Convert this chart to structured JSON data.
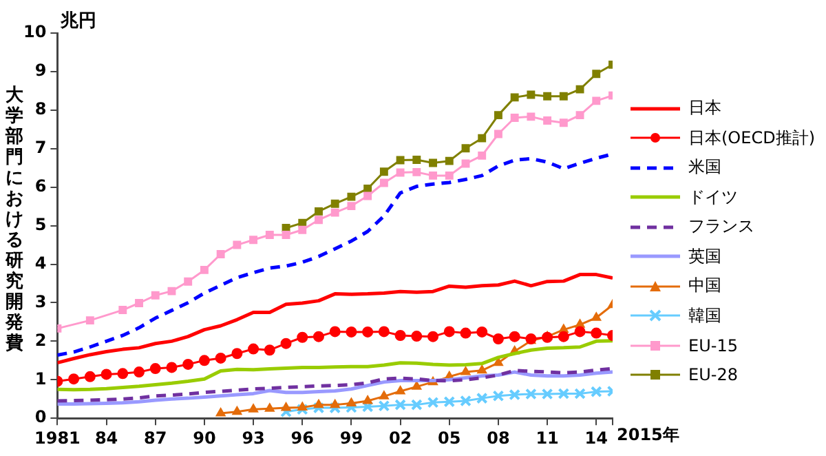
{
  "chart_data": {
    "type": "line",
    "ylabel": "大学部門における研究開発費",
    "annotations": [
      "兆円",
      "2015年"
    ],
    "x": [
      1981,
      1982,
      1983,
      1984,
      1985,
      1986,
      1987,
      1988,
      1989,
      1990,
      1991,
      1992,
      1993,
      1994,
      1995,
      1996,
      1997,
      1998,
      1999,
      2000,
      2001,
      2002,
      2003,
      2004,
      2005,
      2006,
      2007,
      2008,
      2009,
      2010,
      2011,
      2012,
      2013,
      2014,
      2015
    ],
    "xlim": [
      1981,
      2015
    ],
    "xticks": [
      {
        "value": 1981,
        "label": "1981"
      },
      {
        "value": 1984,
        "label": "84"
      },
      {
        "value": 1987,
        "label": "87"
      },
      {
        "value": 1990,
        "label": "90"
      },
      {
        "value": 1993,
        "label": "93"
      },
      {
        "value": 1996,
        "label": "96"
      },
      {
        "value": 1999,
        "label": "99"
      },
      {
        "value": 2002,
        "label": "02"
      },
      {
        "value": 2005,
        "label": "05"
      },
      {
        "value": 2008,
        "label": "08"
      },
      {
        "value": 2011,
        "label": "11"
      },
      {
        "value": 2014,
        "label": "14"
      },
      {
        "value": 2015,
        "label": null
      }
    ],
    "ylim": [
      0,
      10
    ],
    "yticks": [
      0,
      1,
      2,
      3,
      4,
      5,
      6,
      7,
      8,
      9,
      10
    ],
    "grid": false,
    "legend": "right",
    "series": [
      {
        "name": "日本",
        "color": "#ff0000",
        "marker": "none",
        "line_style": "solid",
        "values": [
          1.44,
          1.55,
          1.65,
          1.73,
          1.79,
          1.83,
          1.94,
          2.0,
          2.12,
          2.3,
          2.4,
          2.56,
          2.75,
          2.75,
          2.96,
          2.99,
          3.05,
          3.23,
          3.22,
          3.23,
          3.25,
          3.29,
          3.27,
          3.29,
          3.43,
          3.4,
          3.44,
          3.46,
          3.56,
          3.44,
          3.55,
          3.56,
          3.73,
          3.73,
          3.64
        ]
      },
      {
        "name": "日本(OECD推計)",
        "color": "#ff0000",
        "marker": "circle",
        "line_style": "solid",
        "values": [
          0.96,
          1.02,
          1.08,
          1.14,
          1.16,
          1.2,
          1.29,
          1.32,
          1.4,
          1.5,
          1.56,
          1.68,
          1.8,
          1.77,
          1.94,
          2.1,
          2.12,
          2.25,
          2.24,
          2.24,
          2.25,
          2.15,
          2.13,
          2.12,
          2.25,
          2.21,
          2.24,
          2.06,
          2.12,
          2.06,
          2.1,
          2.12,
          2.25,
          2.21,
          2.15
        ]
      },
      {
        "name": "米国",
        "color": "#0000ff",
        "marker": "none",
        "line_style": "dashed",
        "values": [
          1.64,
          1.72,
          1.85,
          2.0,
          2.15,
          2.35,
          2.6,
          2.8,
          3.0,
          3.25,
          3.45,
          3.65,
          3.78,
          3.9,
          3.95,
          4.05,
          4.2,
          4.4,
          4.6,
          4.85,
          5.25,
          5.85,
          6.02,
          6.08,
          6.12,
          6.2,
          6.3,
          6.55,
          6.7,
          6.74,
          6.65,
          6.48,
          6.62,
          6.75,
          6.86
        ]
      },
      {
        "name": "ドイツ",
        "color": "#99cc00",
        "marker": "none",
        "line_style": "solid",
        "values": [
          0.75,
          0.74,
          0.75,
          0.77,
          0.8,
          0.83,
          0.87,
          0.91,
          0.96,
          1.02,
          1.23,
          1.27,
          1.26,
          1.28,
          1.3,
          1.32,
          1.32,
          1.33,
          1.34,
          1.34,
          1.38,
          1.44,
          1.43,
          1.4,
          1.38,
          1.39,
          1.42,
          1.58,
          1.68,
          1.77,
          1.82,
          1.83,
          1.85,
          2.0,
          2.01
        ]
      },
      {
        "name": "フランス",
        "color": "#7030a0",
        "marker": "none",
        "line_style": "dashed",
        "values": [
          0.45,
          0.46,
          0.47,
          0.48,
          0.5,
          0.53,
          0.58,
          0.6,
          0.63,
          0.67,
          0.7,
          0.73,
          0.76,
          0.78,
          0.8,
          0.82,
          0.84,
          0.85,
          0.87,
          0.92,
          1.02,
          1.04,
          1.02,
          0.98,
          0.97,
          1.0,
          1.05,
          1.12,
          1.24,
          1.22,
          1.2,
          1.18,
          1.2,
          1.25,
          1.29
        ]
      },
      {
        "name": "英国",
        "color": "#9999ff",
        "marker": "none",
        "line_style": "solid",
        "values": [
          0.37,
          0.37,
          0.38,
          0.39,
          0.4,
          0.43,
          0.47,
          0.5,
          0.52,
          0.55,
          0.58,
          0.61,
          0.64,
          0.72,
          0.67,
          0.67,
          0.69,
          0.71,
          0.76,
          0.85,
          0.94,
          0.98,
          0.98,
          0.98,
          1.0,
          1.05,
          1.1,
          1.12,
          1.2,
          1.12,
          1.1,
          1.1,
          1.12,
          1.17,
          1.2
        ]
      },
      {
        "name": "中国",
        "color": "#e46c0a",
        "marker": "triangle",
        "line_style": "solid",
        "values": [
          null,
          null,
          null,
          null,
          null,
          null,
          null,
          null,
          null,
          null,
          0.13,
          0.17,
          0.23,
          0.25,
          0.27,
          0.28,
          0.35,
          0.35,
          0.39,
          0.45,
          0.57,
          0.7,
          0.82,
          0.94,
          1.08,
          1.2,
          1.24,
          1.44,
          1.74,
          2.01,
          2.12,
          2.3,
          2.43,
          2.61,
          2.94
        ]
      },
      {
        "name": "韓国",
        "color": "#66ccff",
        "marker": "cross",
        "line_style": "solid",
        "values": [
          null,
          null,
          null,
          null,
          null,
          null,
          null,
          null,
          null,
          null,
          null,
          null,
          null,
          null,
          0.17,
          0.23,
          0.27,
          0.27,
          0.28,
          0.3,
          0.32,
          0.35,
          0.35,
          0.41,
          0.43,
          0.45,
          0.52,
          0.58,
          0.61,
          0.63,
          0.63,
          0.64,
          0.64,
          0.69,
          0.7
        ]
      },
      {
        "name": "EU-15",
        "color": "#ff99cc",
        "marker": "square",
        "line_style": "solid",
        "values": [
          2.33,
          null,
          2.54,
          null,
          2.81,
          2.99,
          3.19,
          3.3,
          3.55,
          3.85,
          4.26,
          4.5,
          4.63,
          4.76,
          4.76,
          4.89,
          5.15,
          5.34,
          5.51,
          5.77,
          6.11,
          6.38,
          6.39,
          6.3,
          6.3,
          6.61,
          6.82,
          7.38,
          7.8,
          7.83,
          7.73,
          7.67,
          7.87,
          8.24,
          8.38
        ]
      },
      {
        "name": "EU-28",
        "color": "#808000",
        "marker": "square",
        "line_style": "solid",
        "values": [
          null,
          null,
          null,
          null,
          null,
          null,
          null,
          null,
          null,
          null,
          null,
          null,
          null,
          null,
          4.94,
          5.07,
          5.37,
          5.57,
          5.75,
          5.96,
          6.4,
          6.7,
          6.71,
          6.63,
          6.68,
          7.01,
          7.27,
          7.87,
          8.33,
          8.4,
          8.36,
          8.36,
          8.54,
          8.94,
          9.18
        ]
      }
    ]
  }
}
